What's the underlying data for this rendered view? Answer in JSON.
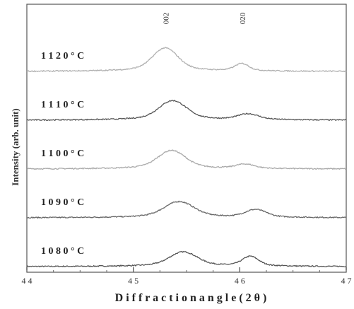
{
  "chart_data": {
    "type": "line",
    "xlabel": "D i f f r a c t i o n   a n g l e (  2 θ  )",
    "ylabel": "Intensity (arb. unit)",
    "xlim": [
      44,
      47
    ],
    "x_ticks": [
      44,
      45,
      46,
      47
    ],
    "x_tick_labels": [
      "4 4",
      "4 5",
      "4 6",
      "4 7"
    ],
    "grid": false,
    "peak_annotations": [
      {
        "label": "002",
        "x": 45.33
      },
      {
        "label": "020",
        "x": 46.05
      }
    ],
    "series": [
      {
        "name": "1 0 8 0 ° C",
        "color": "#555555",
        "baseline": 0.0,
        "peaks": [
          {
            "x": 45.47,
            "amp": 0.3,
            "w": 0.12
          },
          {
            "x": 46.1,
            "amp": 0.2,
            "w": 0.07
          }
        ]
      },
      {
        "name": "1 0 9 0 ° C",
        "color": "#666666",
        "baseline": 1.0,
        "peaks": [
          {
            "x": 45.43,
            "amp": 0.33,
            "w": 0.13
          },
          {
            "x": 46.15,
            "amp": 0.16,
            "w": 0.09
          }
        ]
      },
      {
        "name": "1 1 0 0 ° C",
        "color": "#aaaaaa",
        "baseline": 2.0,
        "peaks": [
          {
            "x": 45.36,
            "amp": 0.38,
            "w": 0.12
          },
          {
            "x": 46.05,
            "amp": 0.09,
            "w": 0.08
          }
        ]
      },
      {
        "name": "1 1 1 0 ° C",
        "color": "#555555",
        "baseline": 3.0,
        "peaks": [
          {
            "x": 45.37,
            "amp": 0.4,
            "w": 0.12
          },
          {
            "x": 46.08,
            "amp": 0.12,
            "w": 0.09
          }
        ]
      },
      {
        "name": "1 1 2 0 ° C",
        "color": "#b0b0b0",
        "baseline": 4.0,
        "peaks": [
          {
            "x": 45.3,
            "amp": 0.48,
            "w": 0.11
          },
          {
            "x": 46.02,
            "amp": 0.15,
            "w": 0.06
          }
        ]
      }
    ]
  }
}
